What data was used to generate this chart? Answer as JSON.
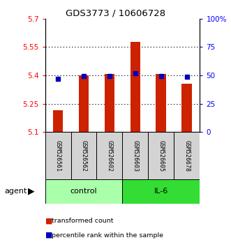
{
  "title": "GDS3773 / 10606728",
  "samples": [
    "GSM526561",
    "GSM526562",
    "GSM526602",
    "GSM526603",
    "GSM526605",
    "GSM526678"
  ],
  "bar_values": [
    5.215,
    5.4,
    5.407,
    5.575,
    5.407,
    5.355
  ],
  "blue_values": [
    5.383,
    5.397,
    5.398,
    5.41,
    5.398,
    5.393
  ],
  "ylim_left": [
    5.1,
    5.7
  ],
  "ylim_right": [
    0,
    100
  ],
  "baseline": 5.1,
  "yticks_left": [
    5.1,
    5.25,
    5.4,
    5.55,
    5.7
  ],
  "yticks_right": [
    0,
    25,
    50,
    75,
    100
  ],
  "ytick_labels_left": [
    "5.1",
    "5.25",
    "5.4",
    "5.55",
    "5.7"
  ],
  "ytick_labels_right": [
    "0",
    "25",
    "50",
    "75",
    "100%"
  ],
  "groups": [
    {
      "label": "control",
      "indices": [
        0,
        1,
        2
      ],
      "color": "#aaffaa"
    },
    {
      "label": "IL-6",
      "indices": [
        3,
        4,
        5
      ],
      "color": "#33dd33"
    }
  ],
  "sample_bg": "#d3d3d3",
  "bar_color": "#cc2200",
  "blue_color": "#0000bb",
  "grid_dotted_vals": [
    5.25,
    5.4,
    5.55
  ],
  "agent_label": "agent",
  "legend_items": [
    {
      "label": "transformed count",
      "color": "#cc2200"
    },
    {
      "label": "percentile rank within the sample",
      "color": "#0000bb"
    }
  ]
}
